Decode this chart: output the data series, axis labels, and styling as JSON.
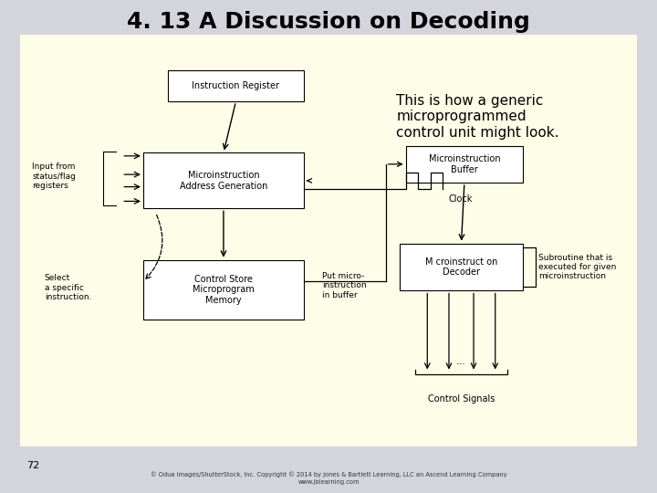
{
  "title": "4. 13 A Discussion on Decoding",
  "title_fontsize": 18,
  "title_fontweight": "bold",
  "bg_color": "#fdfde8",
  "outer_bg": "#d4d4dc",
  "page_number": "72",
  "copyright": "© Odua Images/ShutterStock, Inc. Copyright © 2014 by Jones & Bartlett Learning, LLC an Ascend Learning Company",
  "website": "www.jblearning.com",
  "description_text": "This is how a generic\nmicroprogrammed\ncontrol unit might look."
}
